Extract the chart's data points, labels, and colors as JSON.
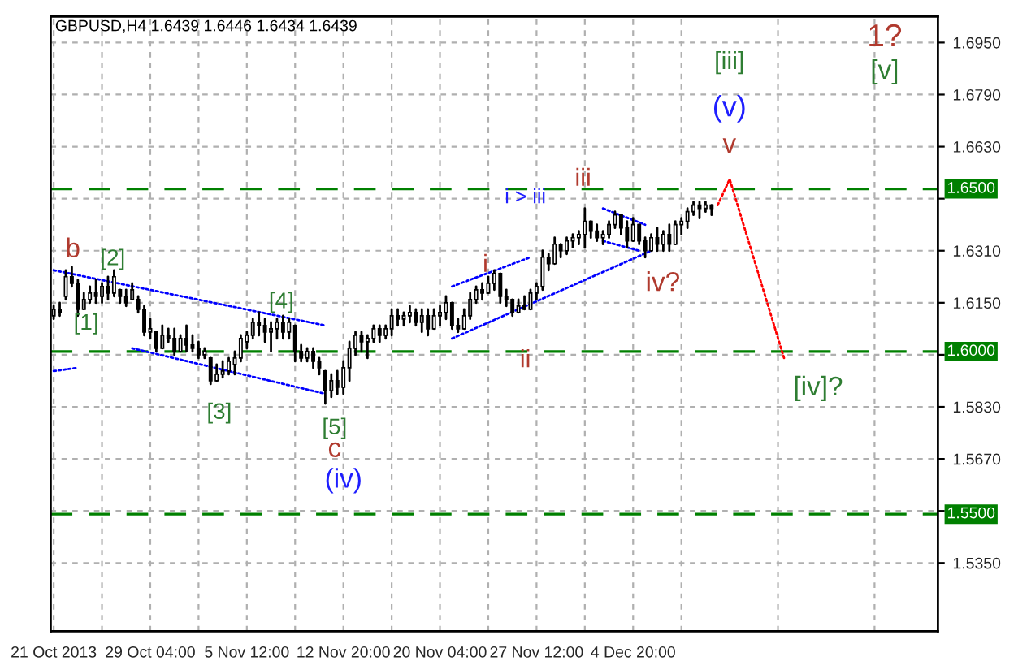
{
  "chart_data": {
    "type": "candlestick",
    "title": "GBPUSD,H4 1.6439 1.6446 1.6434 1.6439",
    "categories": [
      "21 Oct 2013",
      null,
      null,
      null,
      null,
      null,
      null,
      null,
      null,
      null,
      null,
      null,
      null,
      null,
      null,
      null,
      "29 Oct 04:00",
      null,
      null,
      null,
      null,
      null,
      null,
      null,
      null,
      null,
      null,
      null,
      null,
      null,
      null,
      null,
      "5 Nov 12:00",
      null,
      null,
      null,
      null,
      null,
      null,
      null,
      null,
      null,
      null,
      null,
      null,
      null,
      null,
      null,
      "12 Nov 20:00",
      null,
      null,
      null,
      null,
      null,
      null,
      null,
      null,
      null,
      null,
      null,
      null,
      null,
      null,
      null,
      "20 Nov 04:00",
      null,
      null,
      null,
      null,
      null,
      null,
      null,
      null,
      null,
      null,
      null,
      null,
      null,
      null,
      null,
      "27 Nov 12:00",
      null,
      null,
      null,
      null,
      null,
      null,
      null,
      null,
      null,
      null,
      null,
      null,
      null,
      null,
      null,
      "4 Dec 20:00",
      null,
      null,
      null,
      null,
      null,
      null,
      null,
      null,
      null,
      null,
      null,
      null,
      null,
      null,
      null,
      null,
      null,
      null,
      null,
      null,
      null,
      null,
      null,
      null,
      null,
      null,
      null,
      null,
      null,
      null,
      null,
      null,
      null,
      null,
      null,
      null,
      null,
      null,
      null,
      null,
      null,
      null,
      null,
      null,
      null,
      null,
      null,
      null,
      null,
      null
    ],
    "ohlc": [
      [
        1.611,
        1.614,
        1.61,
        1.613
      ],
      [
        1.613,
        1.615,
        1.611,
        1.612
      ],
      [
        1.617,
        1.625,
        1.616,
        1.623
      ],
      [
        1.623,
        1.626,
        1.62,
        1.621
      ],
      [
        1.621,
        1.622,
        1.611,
        1.613
      ],
      [
        1.613,
        1.618,
        1.613,
        1.616
      ],
      [
        1.616,
        1.62,
        1.615,
        1.618
      ],
      [
        1.618,
        1.622,
        1.615,
        1.617
      ],
      [
        1.617,
        1.621,
        1.615,
        1.62
      ],
      [
        1.62,
        1.623,
        1.616,
        1.618
      ],
      [
        1.618,
        1.625,
        1.617,
        1.623
      ],
      [
        1.619,
        1.619,
        1.615,
        1.617
      ],
      [
        1.617,
        1.619,
        1.614,
        1.615
      ],
      [
        1.616,
        1.621,
        1.616,
        1.619
      ],
      [
        1.616,
        1.617,
        1.612,
        1.613
      ],
      [
        1.613,
        1.614,
        1.605,
        1.606
      ],
      [
        1.606,
        1.61,
        1.604,
        1.607
      ],
      [
        1.606,
        1.606,
        1.6,
        1.601
      ],
      [
        1.601,
        1.608,
        1.601,
        1.605
      ],
      [
        1.605,
        1.607,
        1.603,
        1.604
      ],
      [
        1.604,
        1.607,
        1.599,
        1.6
      ],
      [
        1.6,
        1.605,
        1.6,
        1.604
      ],
      [
        1.604,
        1.608,
        1.6,
        1.602
      ],
      [
        1.602,
        1.605,
        1.6,
        1.601
      ],
      [
        1.601,
        1.603,
        1.598,
        1.599
      ],
      [
        1.599,
        1.601,
        1.598,
        1.6
      ],
      [
        1.598,
        1.598,
        1.59,
        1.591
      ],
      [
        1.591,
        1.596,
        1.591,
        1.593
      ],
      [
        1.593,
        1.597,
        1.592,
        1.594
      ],
      [
        1.594,
        1.598,
        1.593,
        1.597
      ],
      [
        1.596,
        1.6,
        1.593,
        1.598
      ],
      [
        1.598,
        1.605,
        1.597,
        1.604
      ],
      [
        1.603,
        1.606,
        1.601,
        1.605
      ],
      [
        1.605,
        1.61,
        1.604,
        1.609
      ],
      [
        1.609,
        1.612,
        1.605,
        1.608
      ],
      [
        1.608,
        1.61,
        1.603,
        1.606
      ],
      [
        1.606,
        1.609,
        1.6,
        1.607
      ],
      [
        1.607,
        1.61,
        1.604,
        1.609
      ],
      [
        1.609,
        1.611,
        1.604,
        1.606
      ],
      [
        1.606,
        1.61,
        1.604,
        1.609
      ],
      [
        1.608,
        1.608,
        1.597,
        1.6
      ],
      [
        1.6,
        1.602,
        1.597,
        1.598
      ],
      [
        1.598,
        1.601,
        1.597,
        1.6
      ],
      [
        1.6,
        1.601,
        1.595,
        1.597
      ],
      [
        1.597,
        1.598,
        1.593,
        1.595
      ],
      [
        1.594,
        1.594,
        1.584,
        1.588
      ],
      [
        1.588,
        1.593,
        1.586,
        1.591
      ],
      [
        1.591,
        1.594,
        1.587,
        1.589
      ],
      [
        1.589,
        1.597,
        1.587,
        1.595
      ],
      [
        1.595,
        1.603,
        1.591,
        1.601
      ],
      [
        1.601,
        1.606,
        1.599,
        1.605
      ],
      [
        1.605,
        1.606,
        1.6,
        1.603
      ],
      [
        1.603,
        1.605,
        1.598,
        1.604
      ],
      [
        1.604,
        1.608,
        1.603,
        1.607
      ],
      [
        1.607,
        1.608,
        1.603,
        1.605
      ],
      [
        1.605,
        1.608,
        1.604,
        1.607
      ],
      [
        1.607,
        1.613,
        1.605,
        1.611
      ],
      [
        1.611,
        1.613,
        1.608,
        1.61
      ],
      [
        1.61,
        1.612,
        1.608,
        1.611
      ],
      [
        1.611,
        1.614,
        1.609,
        1.612
      ],
      [
        1.612,
        1.613,
        1.608,
        1.609
      ],
      [
        1.609,
        1.613,
        1.606,
        1.611
      ],
      [
        1.611,
        1.613,
        1.605,
        1.607
      ],
      [
        1.607,
        1.613,
        1.607,
        1.611
      ],
      [
        1.611,
        1.614,
        1.608,
        1.612
      ],
      [
        1.612,
        1.617,
        1.61,
        1.615
      ],
      [
        1.615,
        1.615,
        1.607,
        1.608
      ],
      [
        1.608,
        1.61,
        1.606,
        1.607
      ],
      [
        1.607,
        1.613,
        1.607,
        1.611
      ],
      [
        1.611,
        1.618,
        1.61,
        1.616
      ],
      [
        1.616,
        1.62,
        1.615,
        1.619
      ],
      [
        1.619,
        1.621,
        1.616,
        1.618
      ],
      [
        1.618,
        1.623,
        1.618,
        1.621
      ],
      [
        1.621,
        1.625,
        1.619,
        1.624
      ],
      [
        1.624,
        1.624,
        1.615,
        1.617
      ],
      [
        1.617,
        1.619,
        1.614,
        1.616
      ],
      [
        1.616,
        1.616,
        1.611,
        1.612
      ],
      [
        1.612,
        1.616,
        1.612,
        1.614
      ],
      [
        1.614,
        1.617,
        1.613,
        1.613
      ],
      [
        1.613,
        1.619,
        1.613,
        1.618
      ],
      [
        1.618,
        1.621,
        1.616,
        1.62
      ],
      [
        1.62,
        1.631,
        1.619,
        1.629
      ],
      [
        1.629,
        1.63,
        1.625,
        1.627
      ],
      [
        1.627,
        1.635,
        1.627,
        1.633
      ],
      [
        1.633,
        1.633,
        1.629,
        1.631
      ],
      [
        1.631,
        1.635,
        1.63,
        1.634
      ],
      [
        1.634,
        1.636,
        1.632,
        1.635
      ],
      [
        1.635,
        1.637,
        1.633,
        1.636
      ],
      [
        1.636,
        1.644,
        1.632,
        1.64
      ],
      [
        1.64,
        1.64,
        1.635,
        1.637
      ],
      [
        1.637,
        1.639,
        1.634,
        1.635
      ],
      [
        1.635,
        1.637,
        1.633,
        1.636
      ],
      [
        1.636,
        1.64,
        1.635,
        1.639
      ],
      [
        1.639,
        1.643,
        1.638,
        1.642
      ],
      [
        1.642,
        1.642,
        1.636,
        1.638
      ],
      [
        1.638,
        1.64,
        1.632,
        1.634
      ],
      [
        1.634,
        1.641,
        1.634,
        1.639
      ],
      [
        1.639,
        1.639,
        1.633,
        1.634
      ],
      [
        1.634,
        1.635,
        1.629,
        1.631
      ],
      [
        1.631,
        1.636,
        1.631,
        1.635
      ],
      [
        1.635,
        1.638,
        1.631,
        1.633
      ],
      [
        1.633,
        1.637,
        1.631,
        1.636
      ],
      [
        1.636,
        1.639,
        1.631,
        1.633
      ],
      [
        1.633,
        1.64,
        1.633,
        1.639
      ],
      [
        1.639,
        1.641,
        1.636,
        1.64
      ],
      [
        1.64,
        1.644,
        1.638,
        1.643
      ],
      [
        1.643,
        1.646,
        1.642,
        1.645
      ],
      [
        1.645,
        1.646,
        1.641,
        1.644
      ],
      [
        1.644,
        1.646,
        1.643,
        1.645
      ],
      [
        1.645,
        1.645,
        1.642,
        1.644
      ],
      null,
      null,
      null,
      null,
      null,
      null,
      null,
      null,
      null,
      null,
      null,
      null,
      null,
      null,
      null,
      null,
      null,
      null,
      null,
      null,
      null,
      null,
      null,
      null,
      null,
      null,
      null,
      null,
      null,
      null,
      null,
      null,
      null,
      null,
      null,
      null,
      null
    ],
    "color": "#000000",
    "series": [
      {
        "type": "line",
        "color": "#0000ff",
        "line_style": "dotted",
        "values": [
          1.625,
          null,
          null,
          null,
          null,
          null,
          null,
          null,
          null,
          null,
          null,
          null,
          null,
          null,
          null,
          null,
          null,
          null,
          null,
          null,
          null,
          null,
          null,
          null,
          null,
          null,
          null,
          null,
          null,
          null,
          null,
          null,
          null,
          null,
          null,
          null,
          null,
          null,
          null,
          null,
          null,
          null,
          null,
          null,
          null,
          1.608,
          null,
          null,
          null,
          null,
          null,
          null,
          null,
          null,
          null,
          null,
          null,
          null,
          null,
          null,
          null,
          null,
          null,
          null,
          null,
          null,
          null,
          null,
          null,
          null,
          null,
          null,
          null,
          null,
          null,
          null,
          null,
          null,
          null,
          null,
          null,
          null,
          null,
          null,
          null,
          null,
          null,
          null,
          null,
          null,
          null,
          null,
          null,
          null,
          null,
          null,
          null,
          null,
          null,
          null,
          null,
          null,
          null,
          null,
          null,
          null,
          null,
          null,
          null,
          null,
          null,
          null,
          null,
          null,
          null,
          null,
          null,
          null,
          null,
          null,
          null,
          null,
          null,
          null,
          null,
          null,
          null,
          null,
          null,
          null,
          null,
          null,
          null,
          null,
          null,
          null,
          null,
          null,
          null,
          null,
          null,
          null,
          null,
          null,
          null,
          null,
          null
        ]
      },
      {
        "type": "line",
        "color": "#0000ff",
        "line_style": "dotted",
        "values": [
          null,
          null,
          null,
          null,
          null,
          null,
          null,
          null,
          null,
          null,
          null,
          null,
          null,
          1.601,
          null,
          null,
          null,
          null,
          null,
          null,
          null,
          null,
          null,
          null,
          null,
          null,
          null,
          null,
          null,
          null,
          null,
          null,
          null,
          null,
          null,
          null,
          null,
          null,
          null,
          null,
          null,
          null,
          null,
          null,
          null,
          1.587,
          null,
          null,
          null,
          null,
          null,
          null,
          null,
          null,
          null,
          null,
          null,
          null,
          null,
          null,
          null,
          null,
          null,
          null,
          null,
          null,
          null,
          null,
          null,
          null,
          null,
          null,
          null,
          null,
          null,
          null,
          null,
          null,
          null,
          null,
          null,
          null,
          null,
          null,
          null,
          null,
          null,
          null,
          null,
          null,
          null,
          null,
          null,
          null,
          null,
          null,
          null,
          null,
          null,
          null,
          null,
          null,
          null,
          null,
          null,
          null,
          null,
          null,
          null,
          null,
          null,
          null,
          null,
          null,
          null,
          null,
          null,
          null,
          null,
          null,
          null,
          null,
          null,
          null,
          null,
          null,
          null,
          null,
          null,
          null,
          null,
          null,
          null,
          null,
          null,
          null,
          null,
          null,
          null,
          null,
          null,
          null,
          null,
          null,
          null,
          null,
          null
        ]
      },
      {
        "type": "line",
        "color": "#0000ff",
        "line_style": "dotted",
        "values": [
          1.594,
          null,
          null,
          null,
          1.595,
          null,
          null,
          null,
          null,
          null,
          null,
          null,
          null,
          null,
          null,
          null,
          null,
          null,
          null,
          null,
          null,
          null,
          null,
          null,
          null,
          null,
          null,
          null,
          null,
          null,
          null,
          null,
          null,
          null,
          null,
          null,
          null,
          null,
          null,
          null,
          null,
          null,
          null,
          null,
          null,
          null,
          null,
          null,
          null,
          null,
          null,
          null,
          null,
          null,
          null,
          null,
          null,
          null,
          null,
          null,
          null,
          null,
          null,
          null,
          null,
          null,
          null,
          null,
          null,
          null,
          null,
          null,
          null,
          null,
          null,
          null,
          null,
          null,
          null,
          null,
          null,
          null,
          null,
          null,
          null,
          null,
          null,
          null,
          null,
          null,
          null,
          null,
          null,
          null,
          null,
          null,
          null,
          null,
          null,
          null,
          null,
          null,
          null,
          null,
          null,
          null,
          null,
          null,
          null,
          null,
          null,
          null,
          null,
          null,
          null,
          null,
          null,
          null,
          null,
          null,
          null,
          null,
          null,
          null,
          null,
          null,
          null,
          null,
          null,
          null,
          null,
          null,
          null,
          null,
          null,
          null,
          null,
          null,
          null,
          null,
          null,
          null,
          null,
          null,
          null,
          null,
          null
        ]
      },
      {
        "type": "line",
        "color": "#0000ff",
        "line_style": "dotted",
        "values": [
          null,
          null,
          null,
          null,
          null,
          null,
          null,
          null,
          null,
          null,
          null,
          null,
          null,
          null,
          null,
          null,
          null,
          null,
          null,
          null,
          null,
          null,
          null,
          null,
          null,
          null,
          null,
          null,
          null,
          null,
          null,
          null,
          null,
          null,
          null,
          null,
          null,
          null,
          null,
          null,
          null,
          null,
          null,
          null,
          null,
          null,
          null,
          null,
          null,
          null,
          null,
          null,
          null,
          null,
          null,
          null,
          null,
          null,
          null,
          null,
          null,
          null,
          null,
          null,
          null,
          null,
          1.62,
          null,
          null,
          null,
          null,
          null,
          null,
          null,
          null,
          null,
          null,
          null,
          null,
          1.629,
          null,
          null,
          null,
          null,
          null,
          null,
          null,
          null,
          null,
          null,
          null,
          null,
          null,
          null,
          null,
          null,
          null,
          null,
          null,
          null,
          null,
          null,
          null,
          null,
          null,
          null,
          null,
          null,
          null,
          null,
          null,
          null,
          null,
          null,
          null,
          null,
          null,
          null,
          null,
          null,
          null,
          null,
          null,
          null,
          null,
          null,
          null,
          null,
          null,
          null,
          null,
          null,
          null,
          null,
          null,
          null,
          null,
          null,
          null,
          null,
          null,
          null,
          null,
          null,
          null,
          null,
          null
        ]
      },
      {
        "type": "line",
        "color": "#0000ff",
        "line_style": "dotted",
        "values": [
          null,
          null,
          null,
          null,
          null,
          null,
          null,
          null,
          null,
          null,
          null,
          null,
          null,
          null,
          null,
          null,
          null,
          null,
          null,
          null,
          null,
          null,
          null,
          null,
          null,
          null,
          null,
          null,
          null,
          null,
          null,
          null,
          null,
          null,
          null,
          null,
          null,
          null,
          null,
          null,
          null,
          null,
          null,
          null,
          null,
          null,
          null,
          null,
          null,
          null,
          null,
          null,
          null,
          null,
          null,
          null,
          null,
          null,
          null,
          null,
          null,
          null,
          null,
          null,
          null,
          null,
          1.604,
          null,
          null,
          null,
          null,
          null,
          null,
          null,
          null,
          null,
          null,
          null,
          null,
          null,
          null,
          null,
          null,
          null,
          null,
          null,
          null,
          null,
          null,
          null,
          null,
          null,
          null,
          null,
          null,
          null,
          null,
          null,
          null,
          1.631,
          null,
          null,
          null,
          null,
          null,
          null,
          null,
          null,
          null,
          null,
          null,
          null,
          null,
          null,
          null,
          null,
          null,
          null,
          null,
          null,
          null,
          null,
          null,
          null,
          null,
          null,
          null,
          null,
          null,
          null,
          null,
          null,
          null,
          null,
          null,
          null,
          null,
          null,
          null,
          null,
          null,
          null,
          null,
          null,
          null,
          null,
          null
        ]
      },
      {
        "type": "line",
        "color": "#0000ff",
        "line_style": "dotted",
        "values": [
          null,
          null,
          null,
          null,
          null,
          null,
          null,
          null,
          null,
          null,
          null,
          null,
          null,
          null,
          null,
          null,
          null,
          null,
          null,
          null,
          null,
          null,
          null,
          null,
          null,
          null,
          null,
          null,
          null,
          null,
          null,
          null,
          null,
          null,
          null,
          null,
          null,
          null,
          null,
          null,
          null,
          null,
          null,
          null,
          null,
          null,
          null,
          null,
          null,
          null,
          null,
          null,
          null,
          null,
          null,
          null,
          null,
          null,
          null,
          null,
          null,
          null,
          null,
          null,
          null,
          null,
          null,
          null,
          null,
          null,
          null,
          null,
          null,
          null,
          null,
          null,
          null,
          null,
          null,
          null,
          null,
          null,
          null,
          null,
          null,
          null,
          null,
          null,
          null,
          null,
          null,
          1.644,
          null,
          null,
          null,
          null,
          null,
          null,
          1.639,
          null,
          null,
          null,
          null,
          null,
          null,
          null,
          null,
          null,
          null,
          null,
          null,
          null,
          null,
          null,
          null,
          null,
          null,
          null,
          null,
          null,
          null,
          null,
          null,
          null,
          null,
          null,
          null,
          null,
          null,
          null,
          null,
          null,
          null,
          null,
          null,
          null,
          null,
          null,
          null,
          null,
          null,
          null,
          null,
          null,
          null,
          null,
          null
        ]
      },
      {
        "type": "line",
        "color": "#0000ff",
        "line_style": "dotted",
        "values": [
          null,
          null,
          null,
          null,
          null,
          null,
          null,
          null,
          null,
          null,
          null,
          null,
          null,
          null,
          null,
          null,
          null,
          null,
          null,
          null,
          null,
          null,
          null,
          null,
          null,
          null,
          null,
          null,
          null,
          null,
          null,
          null,
          null,
          null,
          null,
          null,
          null,
          null,
          null,
          null,
          null,
          null,
          null,
          null,
          null,
          null,
          null,
          null,
          null,
          null,
          null,
          null,
          null,
          null,
          null,
          null,
          null,
          null,
          null,
          null,
          null,
          null,
          null,
          null,
          null,
          null,
          null,
          null,
          null,
          null,
          null,
          null,
          null,
          null,
          null,
          null,
          null,
          null,
          null,
          null,
          null,
          null,
          null,
          null,
          null,
          null,
          null,
          null,
          null,
          null,
          null,
          1.634,
          null,
          null,
          null,
          null,
          null,
          1.631,
          null,
          null,
          null,
          null,
          null,
          null,
          null,
          null,
          null,
          null,
          null,
          null,
          null,
          null,
          null,
          null,
          null,
          null,
          null,
          null,
          null,
          null,
          null,
          null,
          null,
          null,
          null,
          null,
          null,
          null,
          null,
          null,
          null,
          null,
          null,
          null,
          null,
          null,
          null,
          null,
          null,
          null,
          null,
          null,
          null,
          null,
          null,
          null,
          null
        ]
      },
      {
        "type": "line",
        "color": "#ff0000",
        "line_style": "dotted",
        "values": [
          null,
          null,
          null,
          null,
          null,
          null,
          null,
          null,
          null,
          null,
          null,
          null,
          null,
          null,
          null,
          null,
          null,
          null,
          null,
          null,
          null,
          null,
          null,
          null,
          null,
          null,
          null,
          null,
          null,
          null,
          null,
          null,
          null,
          null,
          null,
          null,
          null,
          null,
          null,
          null,
          null,
          null,
          null,
          null,
          null,
          null,
          null,
          null,
          null,
          null,
          null,
          null,
          null,
          null,
          null,
          null,
          null,
          null,
          null,
          null,
          null,
          null,
          null,
          null,
          null,
          null,
          null,
          null,
          null,
          null,
          null,
          null,
          null,
          null,
          null,
          null,
          null,
          null,
          null,
          null,
          null,
          null,
          null,
          null,
          null,
          null,
          null,
          null,
          null,
          null,
          null,
          null,
          null,
          null,
          null,
          null,
          null,
          null,
          null,
          null,
          null,
          null,
          null,
          null,
          null,
          null,
          null,
          null,
          null,
          null,
          1.645,
          null,
          1.653,
          null,
          null,
          null,
          null,
          null,
          null,
          null,
          null,
          1.598,
          null,
          null,
          null,
          null,
          null,
          null,
          null,
          null,
          null,
          null,
          null,
          null,
          null,
          null,
          null,
          null,
          null,
          null,
          null,
          null,
          null,
          null,
          null,
          null,
          null
        ]
      }
    ],
    "ylim": [
      1.514,
      1.703
    ],
    "yticks": [
      {
        "value": 1.535,
        "label": "1.5350"
      },
      {
        "value": 1.551,
        "label": null
      },
      {
        "value": 1.567,
        "label": "1.5670"
      },
      {
        "value": 1.583,
        "label": "1.5830"
      },
      {
        "value": 1.599,
        "label": null
      },
      {
        "value": 1.615,
        "label": "1.6150"
      },
      {
        "value": 1.631,
        "label": "1.6310"
      },
      {
        "value": 1.647,
        "label": null
      },
      {
        "value": 1.663,
        "label": "1.6630"
      },
      {
        "value": 1.679,
        "label": "1.6790"
      },
      {
        "value": 1.695,
        "label": "1.6950"
      }
    ],
    "ref_lines": [
      {
        "axis": "y",
        "value": 1.65,
        "label": "1.6500",
        "color": "#008000",
        "line_style": "dashed"
      },
      {
        "axis": "y",
        "value": 1.6,
        "label": "1.6000",
        "color": "#008000",
        "line_style": "dashed"
      },
      {
        "axis": "y",
        "value": 1.55,
        "label": "1.5500",
        "color": "#008000",
        "line_style": "dashed"
      }
    ],
    "annotations": [
      "b",
      "[1]",
      "[2]",
      "[3]",
      "[4]",
      "[5]",
      "c",
      "(iv)",
      "i",
      "ii",
      "i > iii",
      "iii",
      "iv?",
      "v",
      "(v)",
      "[iii]",
      "[iv]?",
      "1?",
      "[v]"
    ],
    "grid": true
  }
}
